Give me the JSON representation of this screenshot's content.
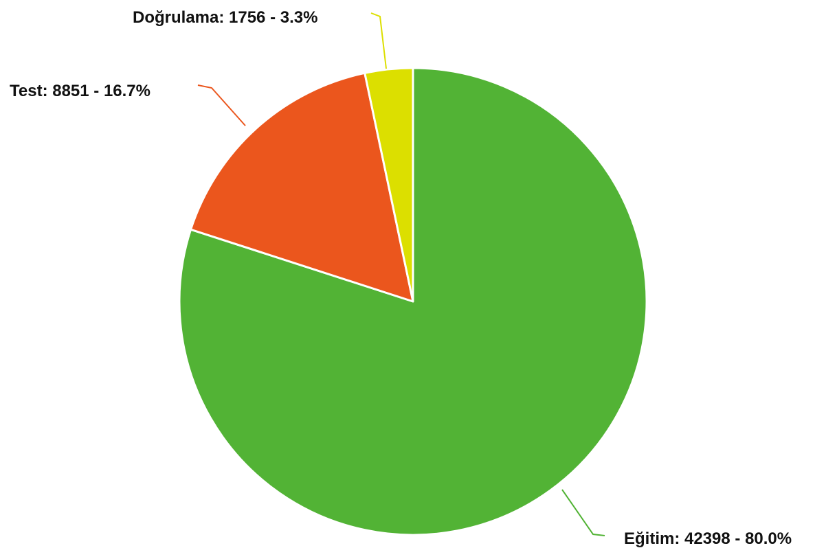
{
  "chart_data": {
    "type": "pie",
    "title": "",
    "start_angle_deg": 0,
    "direction": "clockwise",
    "label_format": "{name}: {value} - {percent}",
    "slices": [
      {
        "name": "Eğitim",
        "value": 42398,
        "percent": "80.0%",
        "color": "#52b335"
      },
      {
        "name": "Test",
        "value": 8851,
        "percent": "16.7%",
        "color": "#eb561d"
      },
      {
        "name": "Doğrulama",
        "value": 1756,
        "percent": "3.3%",
        "color": "#dcdf00"
      }
    ]
  }
}
